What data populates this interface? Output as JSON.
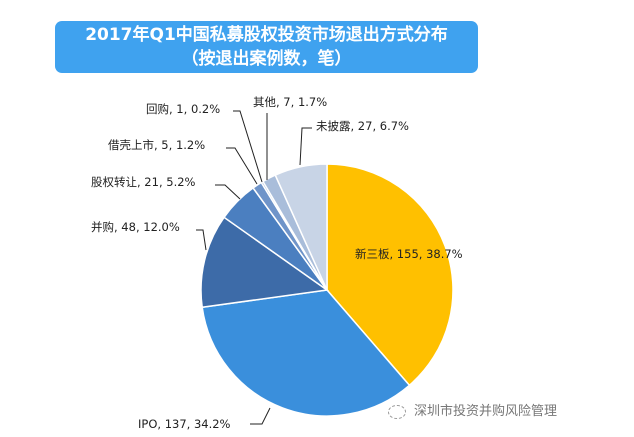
{
  "chart_data": {
    "type": "pie",
    "title": "2017年Q1中国私募股权投资市场退出方式分布",
    "subtitle": "（按退出案例数，笔）",
    "start": "top",
    "direction": "clockwise",
    "slices": [
      {
        "label": "新三板",
        "value": 155,
        "percent": "38.7%",
        "color": "#FFC000"
      },
      {
        "label": "IPO",
        "value": 137,
        "percent": "34.2%",
        "color": "#3A8FDC"
      },
      {
        "label": "并购",
        "value": 48,
        "percent": "12.0%",
        "color": "#3D6BA8"
      },
      {
        "label": "股权转让",
        "value": 21,
        "percent": "5.2%",
        "color": "#4B7FC0"
      },
      {
        "label": "借壳上市",
        "value": 5,
        "percent": "1.2%",
        "color": "#6F94C9"
      },
      {
        "label": "回购",
        "value": 1,
        "percent": "0.2%",
        "color": "#8DA9D2"
      },
      {
        "label": "其他",
        "value": 7,
        "percent": "1.7%",
        "color": "#A9BDDA"
      },
      {
        "label": "未披露",
        "value": 27,
        "percent": "6.7%",
        "color": "#C8D4E6"
      }
    ]
  },
  "watermark": "深圳市投资并购风险管理"
}
